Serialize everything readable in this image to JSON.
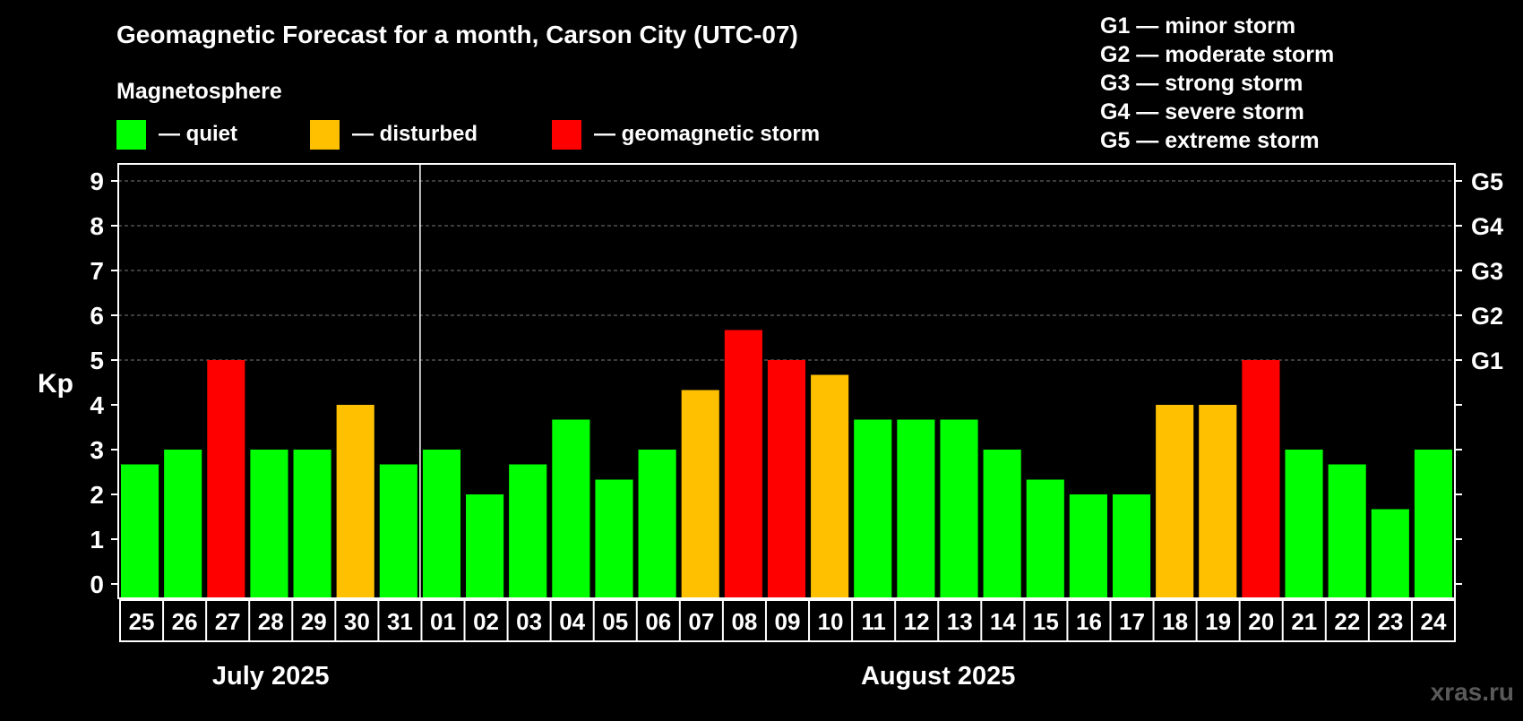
{
  "title": "Geomagnetic Forecast for a month, Carson City (UTC-07)",
  "legend": {
    "heading": "Magnetosphere",
    "items": [
      {
        "label": "— quiet",
        "color": "#00ff00"
      },
      {
        "label": "— disturbed",
        "color": "#ffc000"
      },
      {
        "label": "— geomagnetic storm",
        "color": "#ff0000"
      }
    ]
  },
  "storm_scale": [
    "G1 — minor storm",
    "G2 — moderate storm",
    "G3 — strong storm",
    "G4 — severe storm",
    "G5 — extreme storm"
  ],
  "watermark": "xras.ru",
  "chart_data": {
    "type": "bar",
    "title": "Geomagnetic Forecast for a month, Carson City (UTC-07)",
    "ylabel": "Kp",
    "ylim": [
      0,
      9
    ],
    "yticks": [
      "0",
      "1",
      "2",
      "3",
      "4",
      "5",
      "6",
      "7",
      "8",
      "9"
    ],
    "right_ticks": [
      {
        "value": 5,
        "label": "G1"
      },
      {
        "value": 6,
        "label": "G2"
      },
      {
        "value": 7,
        "label": "G3"
      },
      {
        "value": 8,
        "label": "G4"
      },
      {
        "value": 9,
        "label": "G5"
      }
    ],
    "grid": true,
    "months": [
      {
        "label": "July 2025",
        "start_index": 0,
        "end_index": 6
      },
      {
        "label": "August 2025",
        "start_index": 7,
        "end_index": 30
      }
    ],
    "categories": [
      "25",
      "26",
      "27",
      "28",
      "29",
      "30",
      "31",
      "01",
      "02",
      "03",
      "04",
      "05",
      "06",
      "07",
      "08",
      "09",
      "10",
      "11",
      "12",
      "13",
      "14",
      "15",
      "16",
      "17",
      "18",
      "19",
      "20",
      "21",
      "22",
      "23",
      "24"
    ],
    "values": [
      2.67,
      3,
      5,
      3,
      3,
      4,
      2.67,
      3,
      2,
      2.67,
      3.67,
      2.33,
      3,
      4.33,
      5.67,
      5,
      4.67,
      3.67,
      3.67,
      3.67,
      3,
      2.33,
      2,
      2,
      4,
      4,
      5,
      3,
      2.67,
      1.67,
      3
    ],
    "status": [
      "quiet",
      "quiet",
      "storm",
      "quiet",
      "quiet",
      "disturbed",
      "quiet",
      "quiet",
      "quiet",
      "quiet",
      "quiet",
      "quiet",
      "quiet",
      "disturbed",
      "storm",
      "storm",
      "disturbed",
      "quiet",
      "quiet",
      "quiet",
      "quiet",
      "quiet",
      "quiet",
      "quiet",
      "disturbed",
      "disturbed",
      "storm",
      "quiet",
      "quiet",
      "quiet",
      "quiet"
    ],
    "status_colors": {
      "quiet": "#00ff00",
      "disturbed": "#ffc000",
      "storm": "#ff0000"
    }
  }
}
